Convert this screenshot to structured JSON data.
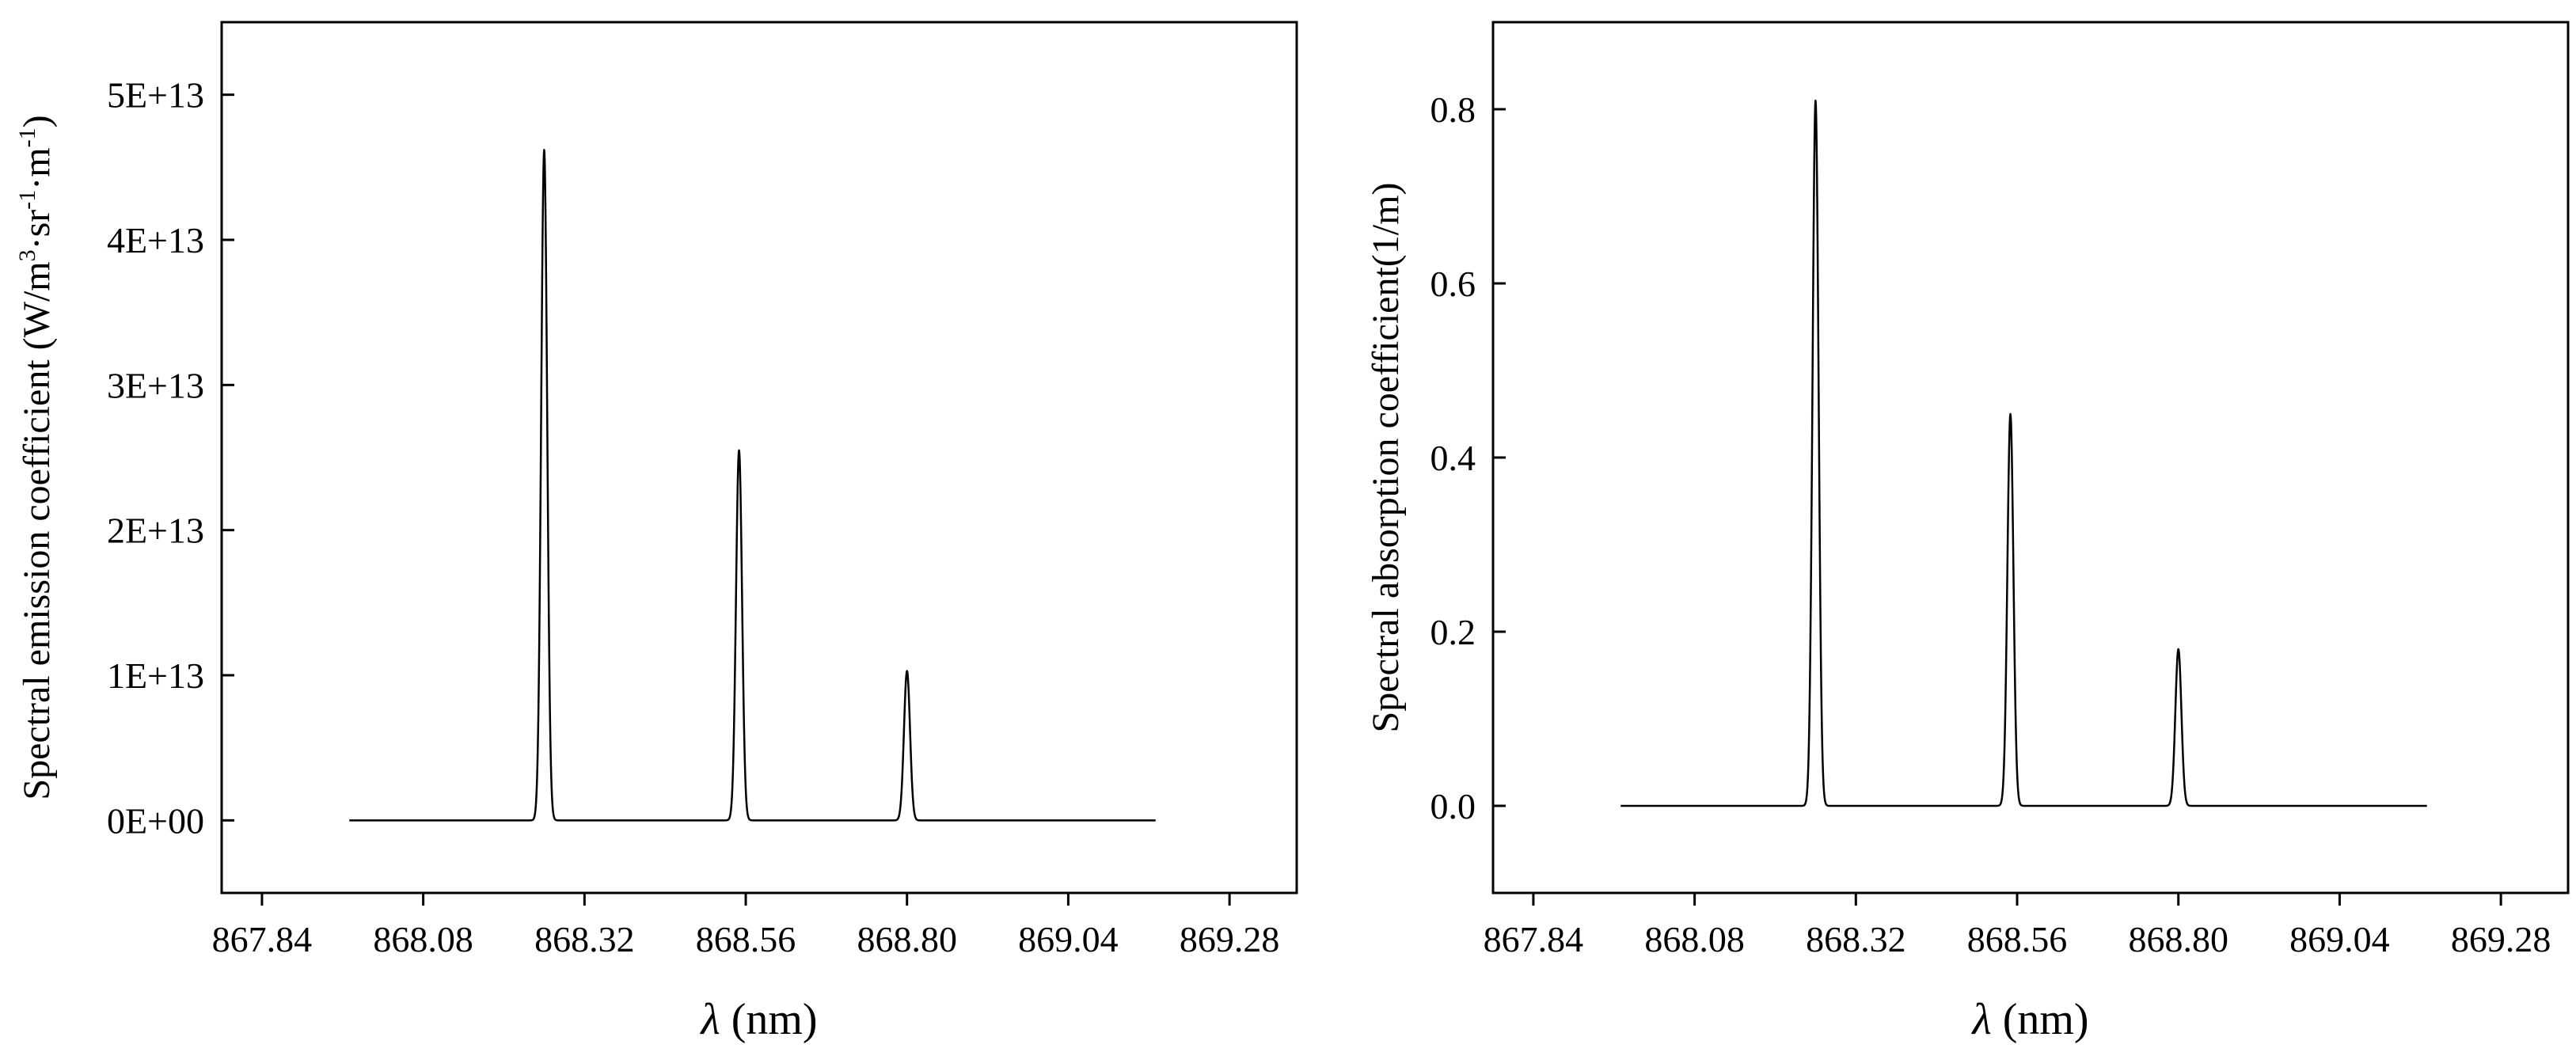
{
  "chart_data": [
    {
      "type": "line",
      "xlabel_symbol": "λ",
      "xlabel_unit": " (nm)",
      "ylabel_parts": [
        "Spectral emission coefficient (W/m",
        "3",
        "·sr",
        "-1",
        "·m",
        "-1",
        ")"
      ],
      "xlim": [
        867.78,
        869.38
      ],
      "ylim": [
        -5000000000000.0,
        55000000000000.0
      ],
      "x_ticks": [
        867.84,
        868.08,
        868.32,
        868.56,
        868.8,
        869.04,
        869.28
      ],
      "x_tick_labels": [
        "867.84",
        "868.08",
        "868.32",
        "868.56",
        "868.80",
        "869.04",
        "869.28"
      ],
      "y_ticks": [
        0,
        10000000000000.0,
        20000000000000.0,
        30000000000000.0,
        40000000000000.0,
        50000000000000.0
      ],
      "y_tick_labels": [
        "0E+00",
        "1E+13",
        "2E+13",
        "3E+13",
        "4E+13",
        "5E+13"
      ],
      "x_range": [
        867.97,
        869.17
      ],
      "baseline": 0,
      "series": [
        {
          "peaks": [
            {
              "center": 868.26,
              "height": 46200000000000.0,
              "width": 0.0045
            },
            {
              "center": 868.55,
              "height": 25500000000000.0,
              "width": 0.0045
            },
            {
              "center": 868.8,
              "height": 10300000000000.0,
              "width": 0.0045
            }
          ]
        }
      ]
    },
    {
      "type": "line",
      "xlabel_symbol": "λ",
      "xlabel_unit": " (nm)",
      "ylabel_parts": [
        "Spectral absorption coefficient(1/m)"
      ],
      "xlim": [
        867.78,
        869.38
      ],
      "ylim": [
        -0.1,
        0.9
      ],
      "x_ticks": [
        867.84,
        868.08,
        868.32,
        868.56,
        868.8,
        869.04,
        869.28
      ],
      "x_tick_labels": [
        "867.84",
        "868.08",
        "868.32",
        "868.56",
        "868.80",
        "869.04",
        "869.28"
      ],
      "y_ticks": [
        0.0,
        0.2,
        0.4,
        0.6,
        0.8
      ],
      "y_tick_labels": [
        "0.0",
        "0.2",
        "0.4",
        "0.6",
        "0.8"
      ],
      "x_range": [
        867.97,
        869.17
      ],
      "baseline": 0,
      "series": [
        {
          "peaks": [
            {
              "center": 868.26,
              "height": 0.81,
              "width": 0.0045
            },
            {
              "center": 868.55,
              "height": 0.45,
              "width": 0.0045
            },
            {
              "center": 868.8,
              "height": 0.18,
              "width": 0.0045
            }
          ]
        }
      ]
    }
  ]
}
